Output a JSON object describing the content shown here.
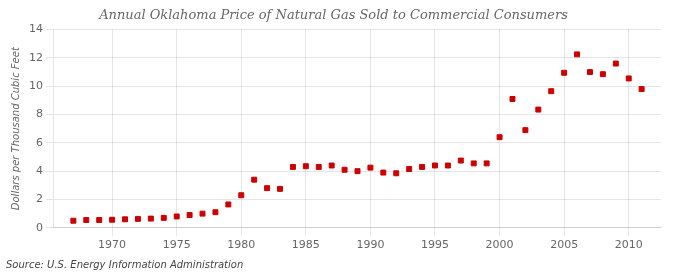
{
  "chart_data": {
    "type": "scatter",
    "title": "Annual Oklahoma Price of Natural Gas Sold to Commercial Consumers",
    "ylabel": "Dollars per Thousand Cubic Feet",
    "source": "Source: U.S. Energy Information Administration",
    "x": [
      1967,
      1968,
      1969,
      1970,
      1971,
      1972,
      1973,
      1974,
      1975,
      1976,
      1977,
      1978,
      1979,
      1980,
      1981,
      1982,
      1983,
      1984,
      1985,
      1986,
      1987,
      1988,
      1989,
      1990,
      1991,
      1992,
      1993,
      1994,
      1995,
      1996,
      1997,
      1998,
      1999,
      2000,
      2001,
      2002,
      2003,
      2004,
      2005,
      2006,
      2007,
      2008,
      2009,
      2010,
      2011
    ],
    "values": [
      0.5,
      0.55,
      0.55,
      0.57,
      0.6,
      0.63,
      0.65,
      0.7,
      0.8,
      0.9,
      1.0,
      1.1,
      1.65,
      2.3,
      3.4,
      2.8,
      2.75,
      4.3,
      4.35,
      4.3,
      4.4,
      4.1,
      4.0,
      4.25,
      3.9,
      3.85,
      4.15,
      4.3,
      4.4,
      4.4,
      4.75,
      4.55,
      4.55,
      6.4,
      9.1,
      6.9,
      8.35,
      9.65,
      10.95,
      12.25,
      11.0,
      10.85,
      11.6,
      10.55,
      9.8
    ],
    "color": "#cc0000",
    "marker": "square",
    "xlim": [
      1965.5,
      2012.5
    ],
    "xticks": [
      1970,
      1975,
      1980,
      1985,
      1990,
      1995,
      2000,
      2005,
      2010
    ],
    "ylim": [
      0,
      14
    ],
    "yticks": [
      0,
      2,
      4,
      6,
      8,
      10,
      12,
      14
    ],
    "grid": true
  }
}
